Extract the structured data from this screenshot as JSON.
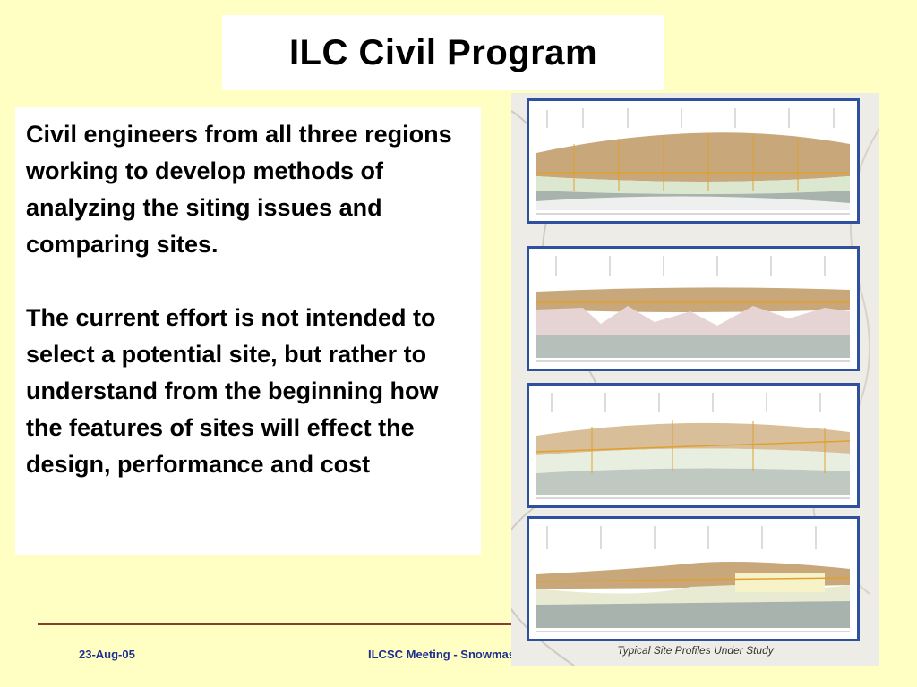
{
  "title": "ILC Civil Program",
  "paragraphs": [
    "Civil engineers from all three regions working to develop methods of analyzing the siting issues and comparing sites.",
    "The current effort is not intended to select a potential site, but rather to understand from the beginning how the features of sites will effect the design, performance and cost"
  ],
  "figure": {
    "caption": "Typical Site Profiles Under Study"
  },
  "footer": {
    "date": "23-Aug-05",
    "meeting": "ILCSC Meeting - Snowmass"
  },
  "colors": {
    "background": "#ffffc4",
    "footer_text": "#1c2e8f",
    "rule": "#8c3b2e",
    "panel_border": "#2f4f9f"
  }
}
